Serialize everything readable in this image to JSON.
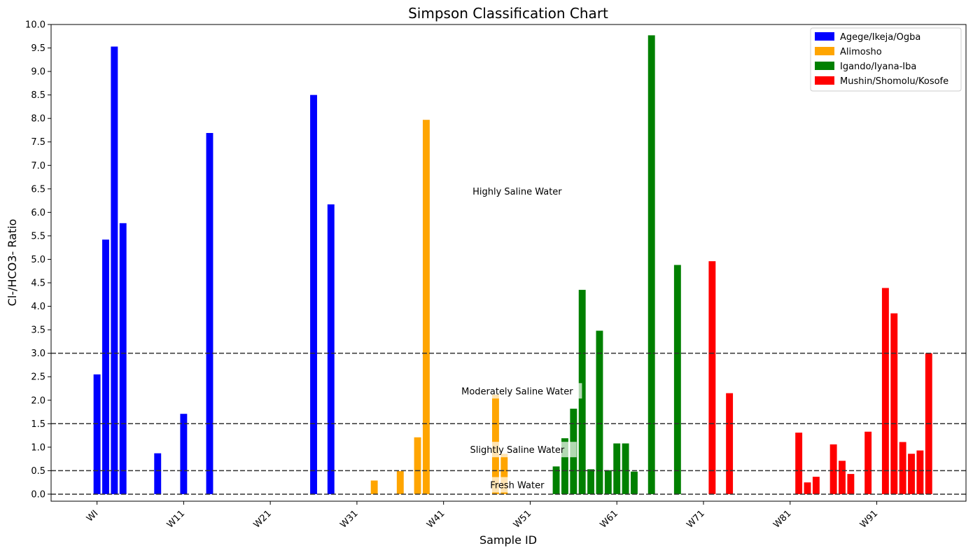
{
  "chart_data": {
    "type": "bar",
    "title": "Simpson Classification Chart",
    "xlabel": "Sample ID",
    "ylabel": "Cl-/HCO3- Ratio",
    "ylim": [
      -0.15,
      10.0
    ],
    "yticks": [
      0.0,
      0.5,
      1.0,
      1.5,
      2.0,
      2.5,
      3.0,
      3.5,
      4.0,
      4.5,
      5.0,
      5.5,
      6.0,
      6.5,
      7.0,
      7.5,
      8.0,
      8.5,
      9.0,
      9.5,
      10.0
    ],
    "ytick_labels": [
      "0.0",
      "0.5",
      "1.0",
      "1.5",
      "2.0",
      "2.5",
      "3.0",
      "3.5",
      "4.0",
      "4.5",
      "5.0",
      "5.5",
      "6.0",
      "6.5",
      "7.0",
      "7.5",
      "8.0",
      "8.5",
      "9.0",
      "9.5",
      "10.0"
    ],
    "xlim": [
      -5.3,
      100.3
    ],
    "xticks": [
      0,
      10,
      20,
      30,
      40,
      50,
      60,
      70,
      80,
      90
    ],
    "xtick_labels": [
      "WI",
      "W11",
      "W21",
      "W31",
      "W41",
      "W51",
      "W61",
      "W71",
      "W81",
      "W91"
    ],
    "grid": false,
    "legend_position": "top-right",
    "thresholds": [
      0,
      0.5,
      1.5,
      3.0
    ],
    "zone_labels": [
      {
        "text": "Highly Saline Water",
        "x": 48.5,
        "y": 6.45
      },
      {
        "text": "Moderately Saline Water",
        "x": 48.5,
        "y": 2.2
      },
      {
        "text": "Slightly Saline Water",
        "x": 48.5,
        "y": 0.95
      },
      {
        "text": "Fresh Water",
        "x": 48.5,
        "y": 0.2
      }
    ],
    "series": [
      {
        "name": "Agege/Ikeja/Ogba",
        "color": "#0000ff",
        "points": [
          {
            "x": 0,
            "y": 2.55
          },
          {
            "x": 1,
            "y": 5.42
          },
          {
            "x": 2,
            "y": 9.53
          },
          {
            "x": 3,
            "y": 5.77
          },
          {
            "x": 7,
            "y": 0.87
          },
          {
            "x": 10,
            "y": 1.71
          },
          {
            "x": 13,
            "y": 7.69
          },
          {
            "x": 25,
            "y": 8.5
          },
          {
            "x": 27,
            "y": 6.17
          }
        ]
      },
      {
        "name": "Alimosho",
        "color": "#ffa500",
        "points": [
          {
            "x": 32,
            "y": 0.29
          },
          {
            "x": 35,
            "y": 0.49
          },
          {
            "x": 37,
            "y": 1.21
          },
          {
            "x": 38,
            "y": 7.97
          },
          {
            "x": 46,
            "y": 2.12
          },
          {
            "x": 47,
            "y": 0.86
          }
        ]
      },
      {
        "name": "Igando/Iyana-Iba",
        "color": "#008000",
        "points": [
          {
            "x": 53,
            "y": 0.59
          },
          {
            "x": 54,
            "y": 1.19
          },
          {
            "x": 55,
            "y": 1.82
          },
          {
            "x": 56,
            "y": 4.35
          },
          {
            "x": 57,
            "y": 0.53
          },
          {
            "x": 58,
            "y": 3.48
          },
          {
            "x": 59,
            "y": 0.51
          },
          {
            "x": 60,
            "y": 1.08
          },
          {
            "x": 61,
            "y": 1.08
          },
          {
            "x": 62,
            "y": 0.48
          },
          {
            "x": 64,
            "y": 9.77
          },
          {
            "x": 67,
            "y": 4.88
          }
        ]
      },
      {
        "name": "Mushin/Shomolu/Kosofe",
        "color": "#ff0000",
        "points": [
          {
            "x": 71,
            "y": 4.96
          },
          {
            "x": 73,
            "y": 2.15
          },
          {
            "x": 81,
            "y": 1.31
          },
          {
            "x": 82,
            "y": 0.25
          },
          {
            "x": 83,
            "y": 0.37
          },
          {
            "x": 85,
            "y": 1.06
          },
          {
            "x": 86,
            "y": 0.71
          },
          {
            "x": 87,
            "y": 0.43
          },
          {
            "x": 89,
            "y": 1.33
          },
          {
            "x": 91,
            "y": 4.39
          },
          {
            "x": 92,
            "y": 3.85
          },
          {
            "x": 93,
            "y": 1.11
          },
          {
            "x": 94,
            "y": 0.86
          },
          {
            "x": 95,
            "y": 0.93
          },
          {
            "x": 96,
            "y": 3.0
          }
        ]
      }
    ]
  }
}
